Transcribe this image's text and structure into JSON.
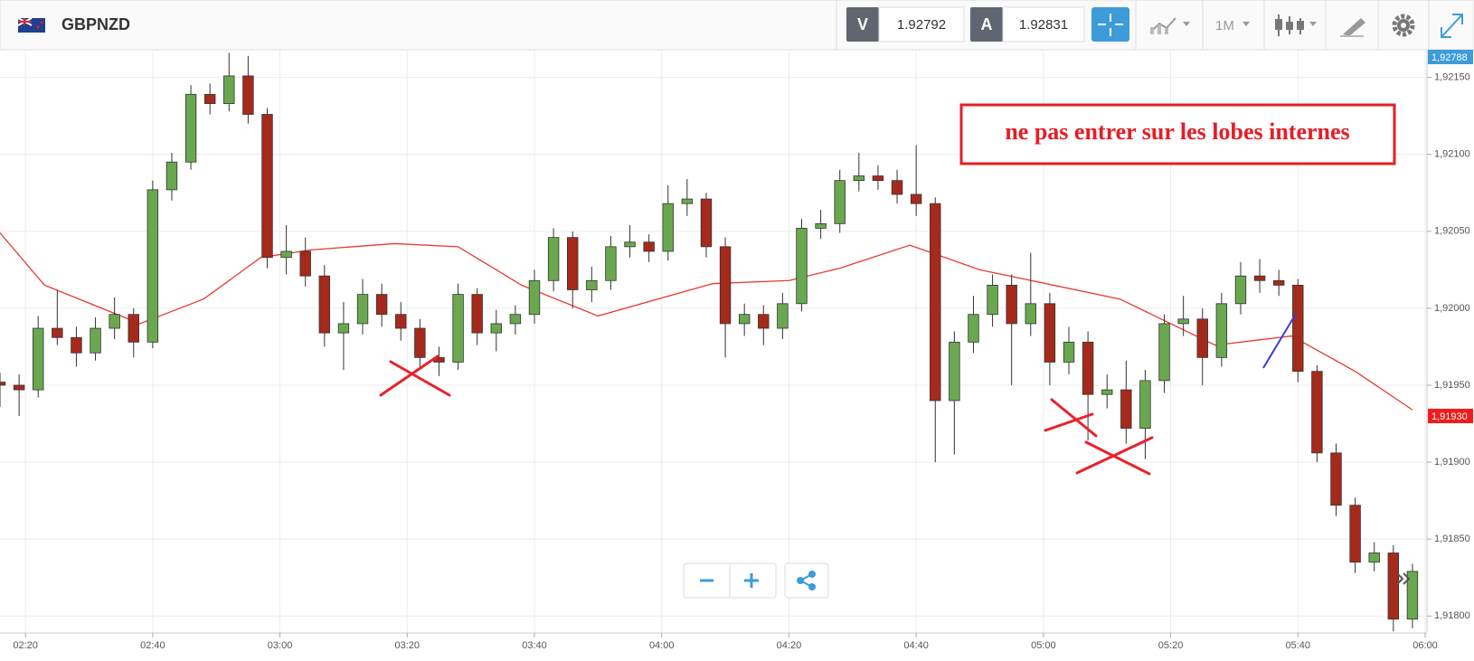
{
  "toolbar": {
    "symbol": "GBPNZD",
    "bid_label": "V",
    "bid": "1.92792",
    "ask_label": "A",
    "ask": "1.92831",
    "timeframe": "1M"
  },
  "chart_data": {
    "type": "candlestick",
    "annotation": "ne pas entrer sur les lobes internes",
    "up_color": "#6aa84f",
    "down_color": "#a52a1c",
    "x": [
      "02:16",
      "02:19",
      "02:22",
      "02:25",
      "02:28",
      "02:31",
      "02:34",
      "02:37",
      "02:40",
      "02:43",
      "02:46",
      "02:49",
      "02:52",
      "02:55",
      "02:58",
      "03:01",
      "03:04",
      "03:07",
      "03:10",
      "03:13",
      "03:16",
      "03:19",
      "03:22",
      "03:25",
      "03:28",
      "03:31",
      "03:34",
      "03:37",
      "03:40",
      "03:43",
      "03:46",
      "03:49",
      "03:52",
      "03:55",
      "03:58",
      "04:01",
      "04:04",
      "04:07",
      "04:10",
      "04:13",
      "04:16",
      "04:19",
      "04:22",
      "04:25",
      "04:28",
      "04:31",
      "04:34",
      "04:37",
      "04:40",
      "04:43",
      "04:46",
      "04:49",
      "04:52",
      "04:55",
      "04:58",
      "05:01",
      "05:04",
      "05:07",
      "05:10",
      "05:13",
      "05:16",
      "05:19",
      "05:22",
      "05:25",
      "05:28",
      "05:31",
      "05:34",
      "05:37",
      "05:40",
      "05:43",
      "05:46",
      "05:49",
      "05:52",
      "05:55",
      "05:58"
    ],
    "open": [
      1.91952,
      1.9195,
      1.91947,
      1.91987,
      1.91981,
      1.91971,
      1.91987,
      1.91996,
      1.91978,
      1.92077,
      1.92095,
      1.92139,
      1.92133,
      1.92151,
      1.92126,
      1.92033,
      1.92037,
      1.92021,
      1.91984,
      1.9199,
      1.92009,
      1.91996,
      1.91987,
      1.91968,
      1.91965,
      1.92009,
      1.91984,
      1.9199,
      1.91996,
      1.92018,
      1.92046,
      1.92012,
      1.92018,
      1.9204,
      1.92043,
      1.92037,
      1.92068,
      1.92071,
      1.9204,
      1.9199,
      1.91996,
      1.91987,
      1.92003,
      1.92052,
      1.92055,
      1.92083,
      1.92086,
      1.92083,
      1.92074,
      1.92068,
      1.9194,
      1.91978,
      1.91996,
      1.92015,
      1.9199,
      1.92003,
      1.91965,
      1.91978,
      1.91944,
      1.91947,
      1.91922,
      1.91953,
      1.9199,
      1.91993,
      1.91968,
      1.92003,
      1.92021,
      1.92018,
      1.92015,
      1.91959,
      1.91906,
      1.91872,
      1.91835,
      1.91841,
      1.91798
    ],
    "high": [
      1.91958,
      1.91957,
      1.91995,
      1.92012,
      1.91988,
      1.91994,
      1.92007,
      1.92,
      1.92083,
      1.92101,
      1.92145,
      1.92146,
      1.92166,
      1.92164,
      1.9213,
      1.92054,
      1.92046,
      1.92028,
      1.92004,
      1.92019,
      1.92016,
      1.92004,
      1.91993,
      1.91975,
      1.92016,
      1.92013,
      1.91999,
      1.92002,
      1.92025,
      1.92052,
      1.9205,
      1.92027,
      1.92047,
      1.92054,
      1.92048,
      1.9208,
      1.92084,
      1.92075,
      1.92046,
      1.92003,
      1.92002,
      1.9201,
      1.92058,
      1.92064,
      1.9209,
      1.92101,
      1.92093,
      1.9209,
      1.92106,
      1.92072,
      1.91985,
      1.92008,
      1.92022,
      1.92022,
      1.92036,
      1.9201,
      1.91988,
      1.91985,
      1.91957,
      1.91966,
      1.9196,
      1.91996,
      1.92008,
      1.92,
      1.9201,
      1.9203,
      1.92032,
      1.92025,
      1.92019,
      1.91963,
      1.91912,
      1.91877,
      1.91848,
      1.91846,
      1.91834
    ],
    "low": [
      1.91936,
      1.9193,
      1.91942,
      1.91976,
      1.91962,
      1.91966,
      1.9198,
      1.91968,
      1.91974,
      1.9207,
      1.9209,
      1.92126,
      1.92128,
      1.9212,
      1.92026,
      1.92022,
      1.92014,
      1.91975,
      1.9196,
      1.91983,
      1.91988,
      1.91979,
      1.9196,
      1.91956,
      1.9196,
      1.91976,
      1.91972,
      1.91983,
      1.9199,
      1.92011,
      1.92,
      1.92004,
      1.92012,
      1.92033,
      1.9203,
      1.92031,
      1.9206,
      1.92033,
      1.91968,
      1.91982,
      1.91976,
      1.9198,
      1.91998,
      1.92045,
      1.92049,
      1.92076,
      1.92077,
      1.92068,
      1.9206,
      1.919,
      1.91905,
      1.91971,
      1.91988,
      1.9195,
      1.91982,
      1.9195,
      1.91957,
      1.91914,
      1.91935,
      1.91912,
      1.91902,
      1.91945,
      1.91982,
      1.9195,
      1.91962,
      1.91996,
      1.9201,
      1.92008,
      1.91952,
      1.919,
      1.91865,
      1.91828,
      1.91829,
      1.9179,
      1.91792
    ],
    "close": [
      1.9195,
      1.91947,
      1.91987,
      1.91981,
      1.91971,
      1.91987,
      1.91996,
      1.91978,
      1.92077,
      1.92095,
      1.92139,
      1.92133,
      1.92151,
      1.92126,
      1.92033,
      1.92037,
      1.92021,
      1.91984,
      1.9199,
      1.92009,
      1.91996,
      1.91987,
      1.91968,
      1.91965,
      1.92009,
      1.91984,
      1.9199,
      1.91996,
      1.92018,
      1.92046,
      1.92012,
      1.92018,
      1.9204,
      1.92043,
      1.92037,
      1.92068,
      1.92071,
      1.9204,
      1.9199,
      1.91996,
      1.91987,
      1.92003,
      1.92052,
      1.92055,
      1.92083,
      1.92086,
      1.92083,
      1.92074,
      1.92068,
      1.9194,
      1.91978,
      1.91996,
      1.92015,
      1.9199,
      1.92003,
      1.91965,
      1.91978,
      1.91944,
      1.91947,
      1.91922,
      1.91953,
      1.9199,
      1.91993,
      1.91968,
      1.92003,
      1.92021,
      1.92018,
      1.92015,
      1.91959,
      1.91906,
      1.91872,
      1.91835,
      1.91841,
      1.91798,
      1.91829
    ],
    "ma": {
      "color": "#e8392f",
      "x": [
        "02:16",
        "02:23",
        "02:38",
        "02:48",
        "02:57",
        "03:05",
        "03:18",
        "03:28",
        "03:38",
        "03:50",
        "04:08",
        "04:20",
        "04:28",
        "04:39",
        "04:50",
        "05:12",
        "05:27",
        "05:39",
        "05:49",
        "05:58"
      ],
      "values": [
        1.92049,
        1.92015,
        1.9199,
        1.92006,
        1.92033,
        1.92038,
        1.92042,
        1.9204,
        1.92015,
        1.91995,
        1.92016,
        1.92018,
        1.92026,
        1.92041,
        1.92025,
        1.92006,
        1.91976,
        1.91982,
        1.91959,
        1.91934
      ]
    },
    "xlim": [
      "02:16",
      "06:00"
    ],
    "xticks": [
      "02:20",
      "02:40",
      "03:00",
      "03:20",
      "03:40",
      "04:00",
      "04:20",
      "04:40",
      "05:00",
      "05:20",
      "05:40",
      "06:00"
    ],
    "ylim": [
      1.91789,
      1.92168
    ],
    "yticks": [
      {
        "value": 1.9215,
        "label": "1,92150"
      },
      {
        "value": 1.921,
        "label": "1,92100"
      },
      {
        "value": 1.9205,
        "label": "1,92050"
      },
      {
        "value": 1.92,
        "label": "1,92000"
      },
      {
        "value": 1.9195,
        "label": "1,91950"
      },
      {
        "value": 1.919,
        "label": "1,91900"
      },
      {
        "value": 1.9185,
        "label": "1,91850"
      },
      {
        "value": 1.918,
        "label": "1,91800"
      }
    ],
    "price_tags": [
      {
        "value": 1.92788,
        "label": "1,92788",
        "color": "#3d9bd9"
      },
      {
        "value": 1.9193,
        "label": "1,91930",
        "color": "#ee1c1c"
      }
    ],
    "grid": true
  }
}
